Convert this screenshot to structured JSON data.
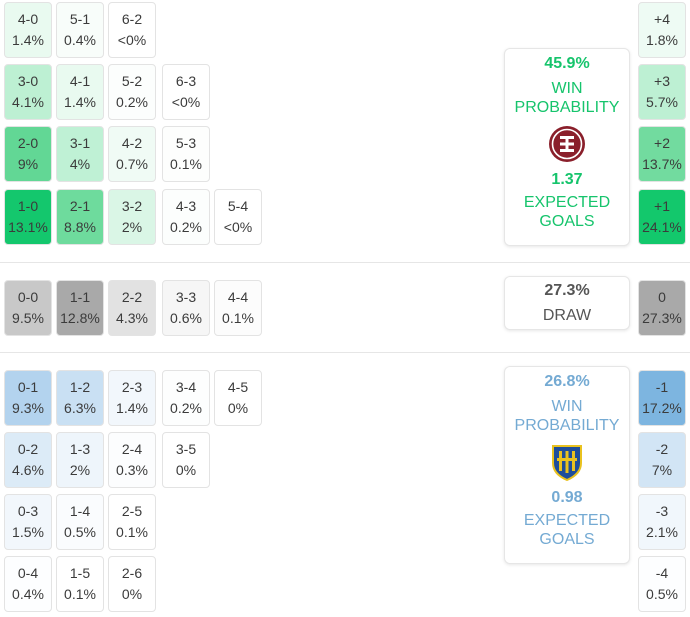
{
  "home": {
    "score_cells": [
      [
        {
          "score": "4-0",
          "pct": "1.4%"
        },
        {
          "score": "5-1",
          "pct": "0.4%"
        },
        {
          "score": "6-2",
          "pct": "<0%"
        }
      ],
      [
        {
          "score": "3-0",
          "pct": "4.1%"
        },
        {
          "score": "4-1",
          "pct": "1.4%"
        },
        {
          "score": "5-2",
          "pct": "0.2%"
        },
        {
          "score": "6-3",
          "pct": "<0%"
        }
      ],
      [
        {
          "score": "2-0",
          "pct": "9%"
        },
        {
          "score": "3-1",
          "pct": "4%"
        },
        {
          "score": "4-2",
          "pct": "0.7%"
        },
        {
          "score": "5-3",
          "pct": "0.1%"
        }
      ],
      [
        {
          "score": "1-0",
          "pct": "13.1%"
        },
        {
          "score": "2-1",
          "pct": "8.8%"
        },
        {
          "score": "3-2",
          "pct": "2%"
        },
        {
          "score": "4-3",
          "pct": "0.2%"
        },
        {
          "score": "5-4",
          "pct": "<0%"
        }
      ]
    ],
    "margins": [
      {
        "label": "+4",
        "pct": "1.8%"
      },
      {
        "label": "+3",
        "pct": "5.7%"
      },
      {
        "label": "+2",
        "pct": "13.7%"
      },
      {
        "label": "+1",
        "pct": "24.1%"
      }
    ],
    "win_pct": "45.9%",
    "win_label_1": "WIN",
    "win_label_2": "PROBABILITY",
    "xg": "1.37",
    "xg_label_1": "EXPECTED",
    "xg_label_2": "GOALS",
    "color": "#16c46c"
  },
  "draw": {
    "score_cells": [
      {
        "score": "0-0",
        "pct": "9.5%"
      },
      {
        "score": "1-1",
        "pct": "12.8%"
      },
      {
        "score": "2-2",
        "pct": "4.3%"
      },
      {
        "score": "3-3",
        "pct": "0.6%"
      },
      {
        "score": "4-4",
        "pct": "0.1%"
      }
    ],
    "margin": {
      "label": "0",
      "pct": "27.3%"
    },
    "pct": "27.3%",
    "label": "DRAW"
  },
  "away": {
    "score_cells": [
      [
        {
          "score": "0-1",
          "pct": "9.3%"
        },
        {
          "score": "1-2",
          "pct": "6.3%"
        },
        {
          "score": "2-3",
          "pct": "1.4%"
        },
        {
          "score": "3-4",
          "pct": "0.2%"
        },
        {
          "score": "4-5",
          "pct": "0%"
        }
      ],
      [
        {
          "score": "0-2",
          "pct": "4.6%"
        },
        {
          "score": "1-3",
          "pct": "2%"
        },
        {
          "score": "2-4",
          "pct": "0.3%"
        },
        {
          "score": "3-5",
          "pct": "0%"
        }
      ],
      [
        {
          "score": "0-3",
          "pct": "1.5%"
        },
        {
          "score": "1-4",
          "pct": "0.5%"
        },
        {
          "score": "2-5",
          "pct": "0.1%"
        }
      ],
      [
        {
          "score": "0-4",
          "pct": "0.4%"
        },
        {
          "score": "1-5",
          "pct": "0.1%"
        },
        {
          "score": "2-6",
          "pct": "0%"
        }
      ]
    ],
    "margins": [
      {
        "label": "-1",
        "pct": "17.2%"
      },
      {
        "label": "-2",
        "pct": "7%"
      },
      {
        "label": "-3",
        "pct": "2.1%"
      },
      {
        "label": "-4",
        "pct": "0.5%"
      }
    ],
    "win_pct": "26.8%",
    "win_label_1": "WIN",
    "win_label_2": "PROBABILITY",
    "xg": "0.98",
    "xg_label_1": "EXPECTED",
    "xg_label_2": "GOALS",
    "color": "#74aad3"
  },
  "icons": {
    "home_logo": "lanus-crest-icon",
    "away_logo": "rosario-central-crest-icon"
  }
}
